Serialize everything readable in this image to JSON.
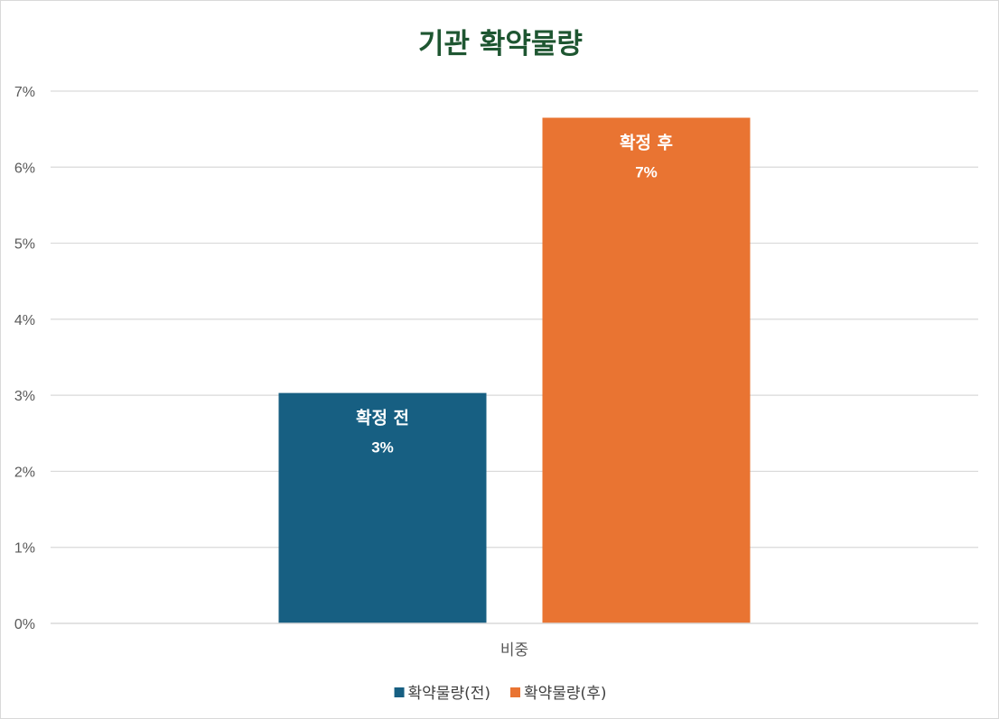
{
  "chart_data": {
    "type": "bar",
    "title": "기관 확약물량",
    "categories": [
      "비중"
    ],
    "series": [
      {
        "name": "확약물량(전)",
        "values": [
          3.03
        ],
        "data_label_text": "확정 전",
        "data_label_value": "3%",
        "color": "#175f82"
      },
      {
        "name": "확약물량(후)",
        "values": [
          6.65
        ],
        "data_label_text": "확정 후",
        "data_label_value": "7%",
        "color": "#e97432"
      }
    ],
    "ylim": [
      0,
      7
    ],
    "yticks": [
      "0%",
      "1%",
      "2%",
      "3%",
      "4%",
      "5%",
      "6%",
      "7%"
    ],
    "grid": true,
    "legend_position": "bottom",
    "xlabel": "",
    "ylabel": ""
  }
}
